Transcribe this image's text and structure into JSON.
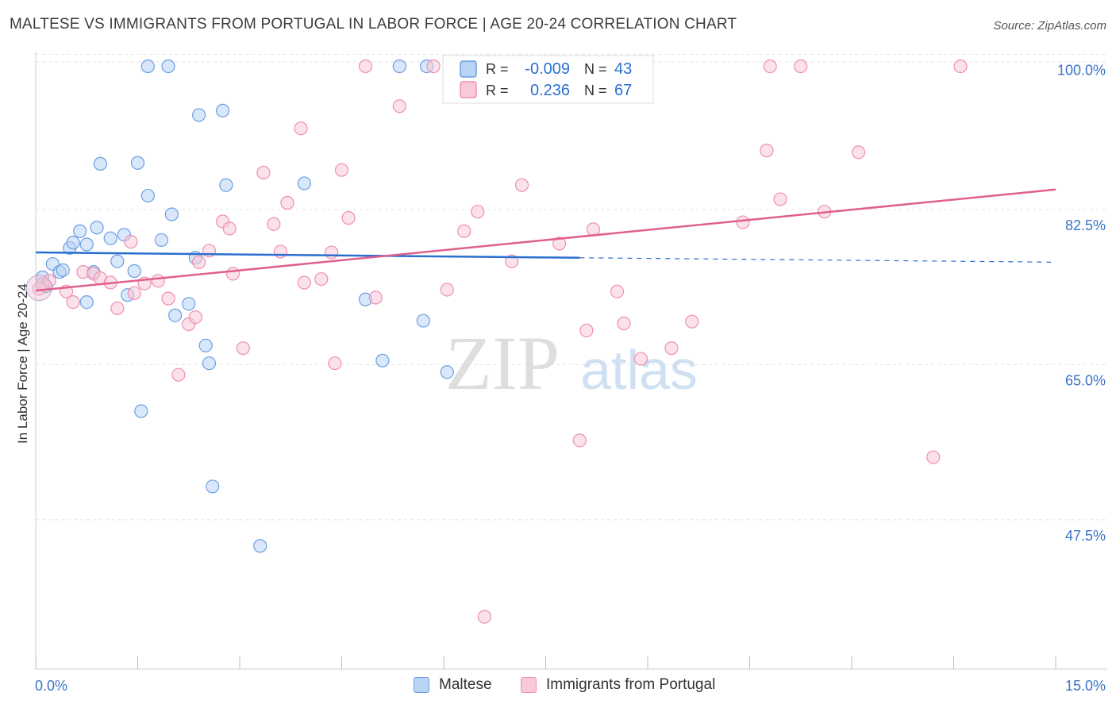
{
  "header": {
    "title": "MALTESE VS IMMIGRANTS FROM PORTUGAL IN LABOR FORCE | AGE 20-24 CORRELATION CHART",
    "source": "Source: ZipAtlas.com"
  },
  "watermark": {
    "zip": "ZIP",
    "atlas": "atlas"
  },
  "chart_data": {
    "type": "scatter",
    "title": "MALTESE VS IMMIGRANTS FROM PORTUGAL IN LABOR FORCE | AGE 20-24 CORRELATION CHART",
    "xlabel": "",
    "ylabel": "In Labor Force | Age 20-24",
    "xlim": [
      0,
      15
    ],
    "ylim": [
      32,
      103
    ],
    "x_tick_labels": {
      "left": "0.0%",
      "right": "15.0%"
    },
    "y_ticks": [
      {
        "value": 100.0,
        "label": "100.0%"
      },
      {
        "value": 82.5,
        "label": "82.5%"
      },
      {
        "value": 65.0,
        "label": "65.0%"
      },
      {
        "value": 47.5,
        "label": "47.5%"
      }
    ],
    "grid": true,
    "legend_position": "top-center",
    "series": [
      {
        "name": "Maltese",
        "color": "#6a9fe0",
        "fill": "#b9d3f5",
        "line_color": "#2a6fd0",
        "R": "-0.009",
        "N": "43",
        "trend": {
          "x0": 0.0,
          "y0": 79.0,
          "x1": 8.0,
          "y1": 78.4,
          "x_dash_end": 15.0,
          "y_dash_end": 77.9
        },
        "points": [
          [
            0.1,
            76.2
          ],
          [
            0.15,
            75.2
          ],
          [
            0.25,
            77.7
          ],
          [
            0.35,
            76.8
          ],
          [
            0.4,
            77.0
          ],
          [
            0.5,
            79.5
          ],
          [
            0.55,
            80.1
          ],
          [
            0.65,
            81.4
          ],
          [
            0.75,
            79.9
          ],
          [
            0.75,
            73.4
          ],
          [
            0.85,
            76.8
          ],
          [
            0.9,
            81.8
          ],
          [
            0.95,
            89.0
          ],
          [
            1.1,
            80.6
          ],
          [
            1.2,
            78.0
          ],
          [
            1.3,
            81.0
          ],
          [
            1.35,
            74.2
          ],
          [
            1.45,
            76.9
          ],
          [
            1.5,
            89.1
          ],
          [
            1.55,
            61.1
          ],
          [
            1.65,
            85.4
          ],
          [
            1.65,
            100.0
          ],
          [
            1.85,
            80.4
          ],
          [
            1.95,
            100.0
          ],
          [
            2.0,
            83.3
          ],
          [
            2.05,
            71.9
          ],
          [
            2.25,
            73.2
          ],
          [
            2.35,
            78.4
          ],
          [
            2.4,
            94.5
          ],
          [
            2.5,
            68.5
          ],
          [
            2.55,
            66.5
          ],
          [
            2.6,
            52.6
          ],
          [
            2.75,
            95.0
          ],
          [
            2.8,
            86.6
          ],
          [
            3.3,
            45.9
          ],
          [
            3.95,
            86.8
          ],
          [
            4.85,
            73.7
          ],
          [
            5.1,
            66.8
          ],
          [
            5.35,
            100.0
          ],
          [
            5.7,
            71.3
          ],
          [
            5.75,
            100.0
          ],
          [
            6.05,
            65.5
          ]
        ]
      },
      {
        "name": "Immigrants from Portugal",
        "color": "#ee8fb1",
        "fill": "#f8c9d9",
        "line_color": "#e0608c",
        "R": "0.236",
        "N": "67",
        "trend": {
          "x0": 0.0,
          "y0": 74.7,
          "x1": 15.0,
          "y1": 86.1
        },
        "points": [
          [
            0.05,
            74.9
          ],
          [
            0.1,
            75.4
          ],
          [
            0.2,
            75.8
          ],
          [
            0.45,
            74.6
          ],
          [
            0.55,
            73.4
          ],
          [
            0.7,
            76.8
          ],
          [
            0.85,
            76.6
          ],
          [
            0.95,
            76.1
          ],
          [
            1.1,
            75.6
          ],
          [
            1.2,
            72.7
          ],
          [
            1.4,
            80.2
          ],
          [
            1.45,
            74.4
          ],
          [
            1.6,
            75.5
          ],
          [
            1.8,
            75.8
          ],
          [
            1.95,
            73.8
          ],
          [
            2.1,
            65.2
          ],
          [
            2.25,
            70.9
          ],
          [
            2.35,
            71.7
          ],
          [
            2.4,
            77.9
          ],
          [
            2.55,
            79.2
          ],
          [
            2.75,
            82.5
          ],
          [
            2.85,
            81.7
          ],
          [
            2.9,
            76.6
          ],
          [
            3.05,
            68.2
          ],
          [
            3.35,
            88.0
          ],
          [
            3.5,
            82.2
          ],
          [
            3.6,
            79.1
          ],
          [
            3.7,
            84.6
          ],
          [
            3.9,
            93.0
          ],
          [
            3.95,
            75.6
          ],
          [
            4.2,
            76.0
          ],
          [
            4.35,
            79.0
          ],
          [
            4.4,
            66.5
          ],
          [
            4.5,
            88.3
          ],
          [
            4.6,
            82.9
          ],
          [
            4.85,
            100.0
          ],
          [
            5.0,
            73.9
          ],
          [
            5.35,
            95.5
          ],
          [
            5.85,
            100.0
          ],
          [
            6.05,
            74.8
          ],
          [
            6.3,
            81.4
          ],
          [
            6.5,
            83.6
          ],
          [
            6.6,
            37.9
          ],
          [
            7.0,
            78.0
          ],
          [
            7.15,
            86.6
          ],
          [
            7.7,
            80.0
          ],
          [
            8.0,
            57.8
          ],
          [
            8.1,
            70.2
          ],
          [
            8.2,
            81.6
          ],
          [
            8.55,
            74.6
          ],
          [
            8.65,
            71.0
          ],
          [
            8.9,
            67.0
          ],
          [
            9.35,
            68.2
          ],
          [
            9.65,
            71.2
          ],
          [
            10.4,
            82.4
          ],
          [
            10.75,
            90.5
          ],
          [
            10.8,
            100.0
          ],
          [
            10.95,
            85.0
          ],
          [
            11.25,
            100.0
          ],
          [
            11.6,
            83.6
          ],
          [
            12.1,
            90.3
          ],
          [
            13.2,
            55.9
          ],
          [
            13.6,
            100.0
          ]
        ]
      }
    ]
  }
}
